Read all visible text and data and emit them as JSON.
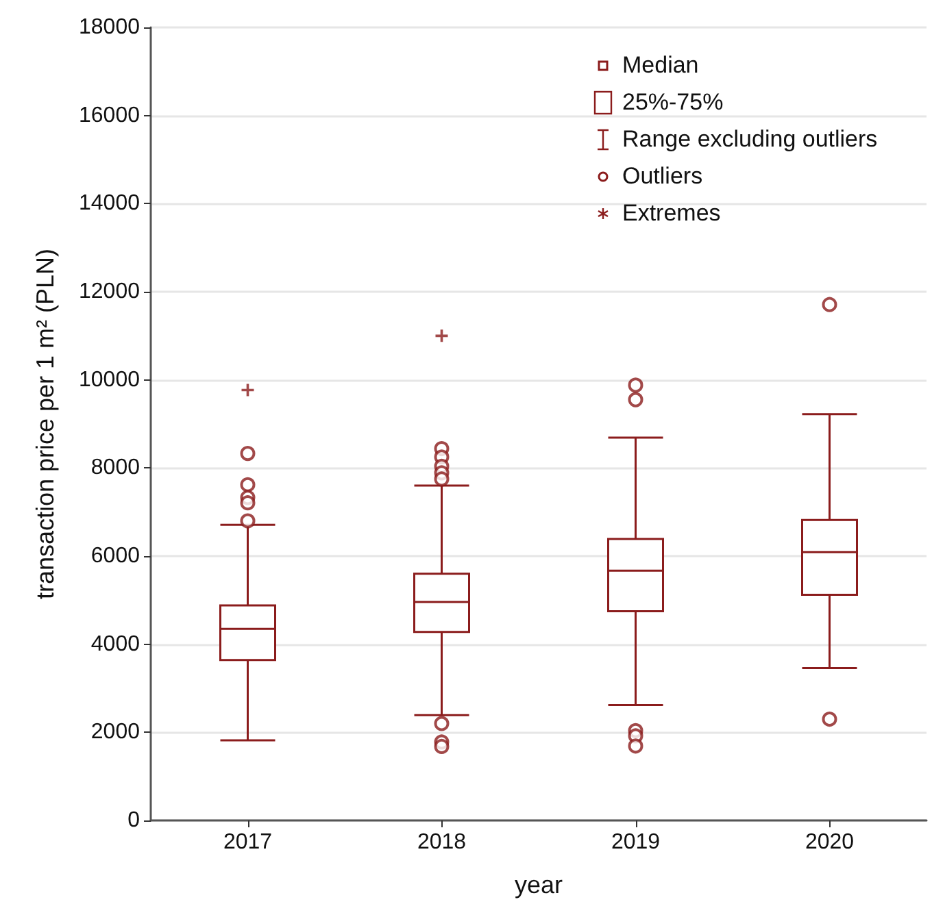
{
  "chart_data": {
    "type": "box",
    "xlabel": "year",
    "ylabel": "transaction price per 1 m² (PLN)",
    "categories": [
      "2017",
      "2018",
      "2019",
      "2020"
    ],
    "ylim": [
      0,
      18000
    ],
    "yticks": [
      0,
      2000,
      4000,
      6000,
      8000,
      10000,
      12000,
      14000,
      16000,
      18000
    ],
    "grid": "y",
    "series": [
      {
        "color": "#8b1c1c",
        "boxes": [
          {
            "low": 1820,
            "q1": 3640,
            "median": 4350,
            "q3": 4880,
            "high": 6710,
            "outliers": [
              8330,
              7620,
              7330,
              7210,
              6800
            ]
          },
          {
            "low": 2390,
            "q1": 4280,
            "median": 4960,
            "q3": 5600,
            "high": 7600,
            "outliers": [
              8440,
              8250,
              8040,
              7890,
              7750,
              2200,
              1780,
              1680
            ]
          },
          {
            "low": 2620,
            "q1": 4750,
            "median": 5670,
            "q3": 6390,
            "high": 8690,
            "outliers": [
              9880,
              9550,
              2040,
              1920,
              1690
            ]
          },
          {
            "low": 3460,
            "q1": 5120,
            "median": 6090,
            "q3": 6820,
            "high": 9220,
            "outliers": [
              11710,
              2300
            ]
          }
        ]
      },
      {
        "type": "scatter",
        "color": "#8b1c1c",
        "marker": "cross",
        "values": [
          9770,
          11000,
          null,
          null
        ]
      }
    ],
    "annotations": [
      "Median",
      "25%-75%",
      "Range excluding outliers",
      "Outliers",
      "Extremes"
    ]
  }
}
